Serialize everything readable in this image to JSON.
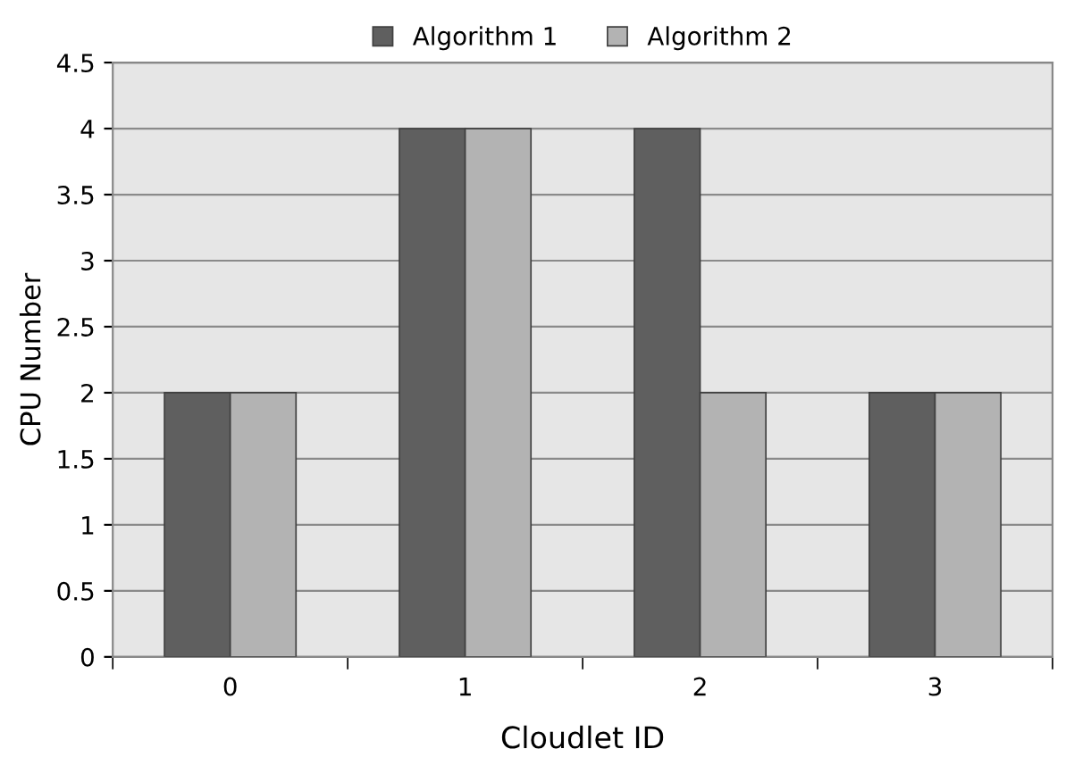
{
  "chart_data": {
    "type": "bar",
    "xlabel": "Cloudlet ID",
    "ylabel": "CPU Number",
    "categories": [
      "0",
      "1",
      "2",
      "3"
    ],
    "series": [
      {
        "name": "Algorithm 1",
        "color": "#5f5f5f",
        "values": [
          2,
          4,
          4,
          2
        ]
      },
      {
        "name": "Algorithm 2",
        "color": "#b3b3b3",
        "values": [
          2,
          4,
          2,
          2
        ]
      }
    ],
    "ylim": [
      0,
      4.5
    ],
    "yticks": [
      0,
      0.5,
      1,
      1.5,
      2,
      2.5,
      3,
      3.5,
      4,
      4.5
    ],
    "grid": "y",
    "legend": "top"
  }
}
